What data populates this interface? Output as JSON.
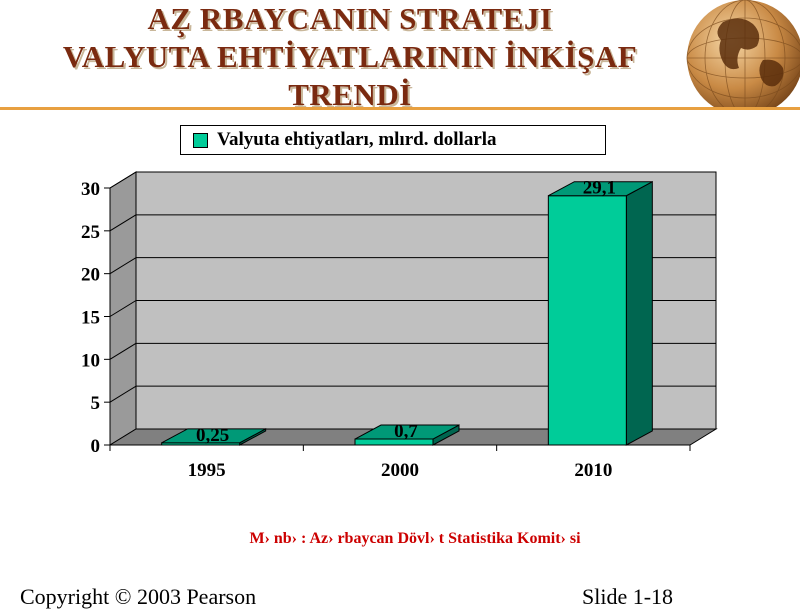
{
  "slide": {
    "title_lines": [
      "AZ̧ RBAYCANIN STRATEJI",
      "VALYUTA EHTİYATLARININ İNKİŞAF",
      "TRENDİ"
    ],
    "source_note": "M› nb› : Az› rbaycan Dövl› t Statistika Komit› si",
    "footer_left": "Copyright © 2003 Pearson",
    "footer_right": "Slide 1-18",
    "globe_icon": "globe-icon"
  },
  "colors": {
    "bar_front": "#00cc99",
    "bar_side": "#006650",
    "bar_top": "#009977",
    "wall": "#c0c0c0",
    "floor": "#808080",
    "title": "#7a2a10",
    "source": "#cc0000",
    "divider": "#e8a040"
  },
  "chart_data": {
    "type": "bar",
    "categories": [
      "1995",
      "2000",
      "2010"
    ],
    "series": [
      {
        "name": "Valyuta ehtiyatları, mlırd. dollarla",
        "values": [
          0.25,
          0.7,
          29.1
        ]
      }
    ],
    "data_labels": [
      "0,25",
      "0,7",
      "29,1"
    ],
    "y_ticks": [
      0,
      5,
      10,
      15,
      20,
      25,
      30
    ],
    "ylim": [
      0,
      30
    ],
    "grid": true,
    "legend_position": "top",
    "three_d": true
  }
}
